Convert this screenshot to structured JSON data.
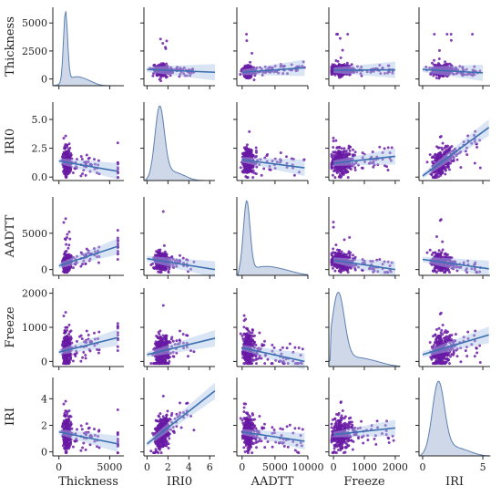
{
  "colors": {
    "point_fill": "#7a1fb0",
    "point_stroke": "#4b1290",
    "reg_line": "#3b6fb0",
    "ci_band": "#aac4e6",
    "kde_line": "#5b7fb0",
    "kde_fill": "#b9c8e0",
    "axis": "#222222"
  },
  "chart_data": {
    "type": "scatter",
    "kind": "pairplot",
    "variables": [
      "Thickness",
      "IRI0",
      "AADTT",
      "Freeze",
      "IRI"
    ],
    "diagonal": "kde",
    "off_diagonal": "scatter with linear regression fit and confidence band",
    "axes": {
      "Thickness": {
        "label": "Thickness",
        "range": [
          -600,
          6400
        ],
        "ticks": [
          0,
          5000
        ],
        "tick_labels": [
          "0",
          "5000"
        ],
        "y_ticks": [
          0,
          2500,
          5000
        ],
        "y_tick_labels": [
          "0",
          "2500",
          "5000"
        ]
      },
      "IRI0": {
        "label": "IRI0",
        "range": [
          -0.3,
          6.5
        ],
        "ticks": [
          0,
          2,
          4,
          6
        ],
        "tick_labels": [
          "0",
          "2",
          "4",
          "6"
        ],
        "y_ticks": [
          0.0,
          2.5,
          5.0
        ],
        "y_tick_labels": [
          "0.0",
          "2.5",
          "5.0"
        ]
      },
      "AADTT": {
        "label": "AADTT",
        "range": [
          -800,
          10000
        ],
        "ticks": [
          0,
          5000,
          10000
        ],
        "tick_labels": [
          "0",
          "5000",
          "10000"
        ],
        "y_ticks": [
          0,
          5000
        ],
        "y_tick_labels": [
          "0",
          "5000"
        ]
      },
      "Freeze": {
        "label": "Freeze",
        "range": [
          -150,
          2150
        ],
        "ticks": [
          0,
          1000,
          2000
        ],
        "tick_labels": [
          "0",
          "1000",
          "2000"
        ],
        "y_ticks": [
          0,
          1000,
          2000
        ],
        "y_tick_labels": [
          "0",
          "1000",
          "2000"
        ]
      },
      "IRI": {
        "label": "IRI",
        "range": [
          -0.3,
          5.6
        ],
        "ticks": [
          0,
          5
        ],
        "tick_labels": [
          "0",
          "5"
        ],
        "y_ticks": [
          0,
          2,
          4
        ],
        "y_tick_labels": [
          "0",
          "2",
          "4"
        ]
      }
    },
    "distributions": {
      "Thickness": {
        "center": 650,
        "spread": 200,
        "tail": 4000,
        "outlier": 5800
      },
      "IRI0": {
        "center": 1.2,
        "spread": 0.45,
        "tail": 4.5
      },
      "AADTT": {
        "center": 700,
        "spread": 500,
        "tail": 9500
      },
      "Freeze": {
        "center": 150,
        "spread": 200,
        "tail": 1950
      },
      "IRI": {
        "center": 1.3,
        "spread": 0.5,
        "tail": 4.8
      }
    },
    "regression_lines": [
      {
        "x": "Thickness",
        "y": "IRI0",
        "points": [
          [
            0,
            1.4
          ],
          [
            5800,
            0.5
          ]
        ]
      },
      {
        "x": "Thickness",
        "y": "AADTT",
        "points": [
          [
            0,
            500
          ],
          [
            5800,
            3200
          ]
        ]
      },
      {
        "x": "Thickness",
        "y": "Freeze",
        "points": [
          [
            0,
            270
          ],
          [
            5800,
            700
          ]
        ]
      },
      {
        "x": "Thickness",
        "y": "IRI",
        "points": [
          [
            0,
            1.5
          ],
          [
            5800,
            0.6
          ]
        ]
      },
      {
        "x": "IRI0",
        "y": "Thickness",
        "points": [
          [
            0,
            850
          ],
          [
            6.5,
            600
          ]
        ]
      },
      {
        "x": "IRI0",
        "y": "AADTT",
        "points": [
          [
            0,
            1500
          ],
          [
            6.5,
            0
          ]
        ]
      },
      {
        "x": "IRI0",
        "y": "Freeze",
        "points": [
          [
            0,
            200
          ],
          [
            6.5,
            680
          ]
        ]
      },
      {
        "x": "IRI0",
        "y": "IRI",
        "points": [
          [
            0,
            0.6
          ],
          [
            6.5,
            4.6
          ]
        ]
      },
      {
        "x": "AADTT",
        "y": "Thickness",
        "points": [
          [
            0,
            600
          ],
          [
            9500,
            1000
          ]
        ]
      },
      {
        "x": "AADTT",
        "y": "IRI0",
        "points": [
          [
            0,
            1.5
          ],
          [
            9500,
            0.8
          ]
        ]
      },
      {
        "x": "AADTT",
        "y": "Freeze",
        "points": [
          [
            0,
            400
          ],
          [
            9500,
            0
          ]
        ]
      },
      {
        "x": "AADTT",
        "y": "IRI",
        "points": [
          [
            0,
            1.5
          ],
          [
            9500,
            0.8
          ]
        ]
      },
      {
        "x": "Freeze",
        "y": "Thickness",
        "points": [
          [
            0,
            780
          ],
          [
            2000,
            820
          ]
        ]
      },
      {
        "x": "Freeze",
        "y": "IRI0",
        "points": [
          [
            0,
            1.2
          ],
          [
            2000,
            1.8
          ]
        ]
      },
      {
        "x": "Freeze",
        "y": "AADTT",
        "points": [
          [
            0,
            1300
          ],
          [
            2000,
            0
          ]
        ]
      },
      {
        "x": "Freeze",
        "y": "IRI",
        "points": [
          [
            0,
            1.3
          ],
          [
            2000,
            1.8
          ]
        ]
      },
      {
        "x": "IRI",
        "y": "Thickness",
        "points": [
          [
            0,
            850
          ],
          [
            5,
            550
          ]
        ]
      },
      {
        "x": "IRI",
        "y": "IRI0",
        "points": [
          [
            0,
            0.1
          ],
          [
            5.5,
            4.3
          ]
        ]
      },
      {
        "x": "IRI",
        "y": "AADTT",
        "points": [
          [
            0,
            1400
          ],
          [
            5.5,
            100
          ]
        ]
      },
      {
        "x": "IRI",
        "y": "Freeze",
        "points": [
          [
            0,
            200
          ],
          [
            5.5,
            780
          ]
        ]
      }
    ],
    "grid": false,
    "legend": "none"
  }
}
